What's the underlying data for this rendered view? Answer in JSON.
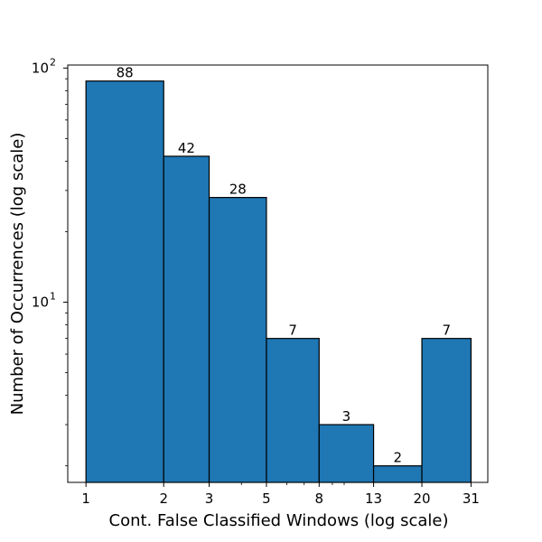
{
  "chart_data": {
    "type": "bar",
    "title": "",
    "xlabel": "Cont. False Classified Windows (log scale)",
    "ylabel": "Number of Occurrences (log scale)",
    "xscale": "log",
    "yscale": "log",
    "xlim": [
      0.85,
      36
    ],
    "ylim": [
      1.7,
      103
    ],
    "bin_edges": [
      1,
      2,
      3,
      5,
      8,
      13,
      20,
      31
    ],
    "bins": [
      {
        "from": 1,
        "to": 2,
        "value": 88,
        "label": "88"
      },
      {
        "from": 2,
        "to": 3,
        "value": 42,
        "label": "42"
      },
      {
        "from": 3,
        "to": 5,
        "value": 28,
        "label": "28"
      },
      {
        "from": 5,
        "to": 8,
        "value": 7,
        "label": "7"
      },
      {
        "from": 8,
        "to": 13,
        "value": 3,
        "label": "3"
      },
      {
        "from": 13,
        "to": 20,
        "value": 2,
        "label": "2"
      },
      {
        "from": 20,
        "to": 31,
        "value": 7,
        "label": "7"
      }
    ],
    "x_ticks": [
      {
        "value": 1,
        "label": "1"
      },
      {
        "value": 2,
        "label": "2"
      },
      {
        "value": 3,
        "label": "3"
      },
      {
        "value": 5,
        "label": "5"
      },
      {
        "value": 8,
        "label": "8"
      },
      {
        "value": 13,
        "label": "13"
      },
      {
        "value": 20,
        "label": "20"
      },
      {
        "value": 31,
        "label": "31"
      }
    ],
    "x_minor_ticks": [
      4,
      6,
      7,
      9,
      10
    ],
    "y_major_ticks": [
      {
        "value": 10,
        "base": "10",
        "exp": "1"
      },
      {
        "value": 100,
        "base": "10",
        "exp": "2"
      }
    ],
    "y_minor_ticks": [
      2,
      3,
      4,
      5,
      6,
      7,
      8,
      9,
      20,
      30,
      40,
      50,
      60,
      70,
      80,
      90
    ],
    "bar_color": "#1f77b4",
    "edge_color": "#000000",
    "grid": false,
    "legend": "none"
  }
}
